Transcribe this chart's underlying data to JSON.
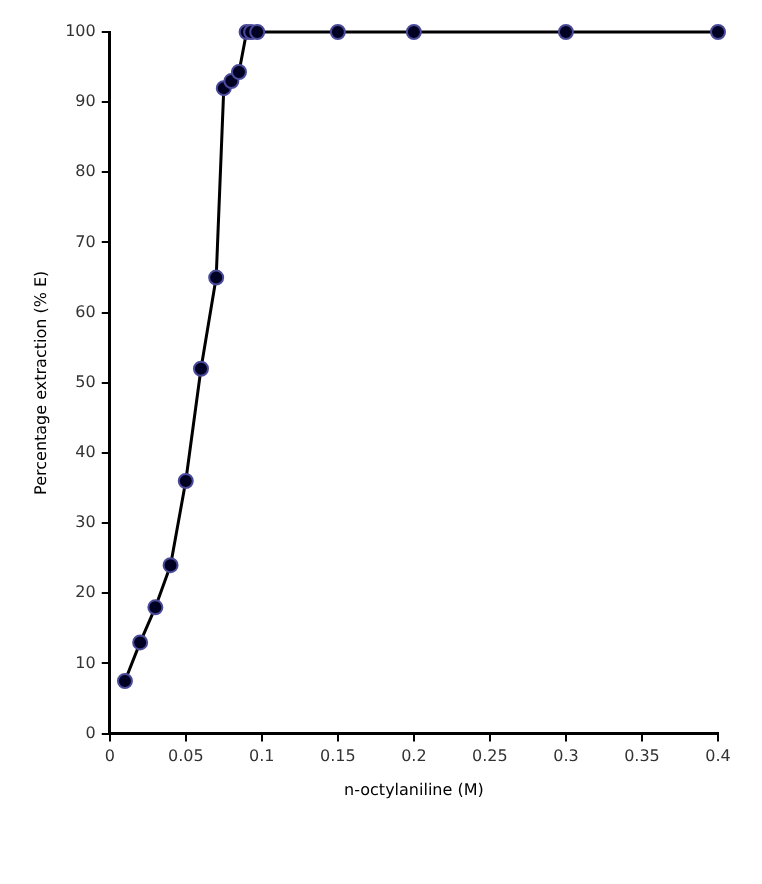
{
  "chart_data": {
    "type": "line",
    "xlabel": "n-octylaniline (M)",
    "ylabel": "Percentage extraction (% E)",
    "x": [
      0.01,
      0.02,
      0.03,
      0.04,
      0.05,
      0.06,
      0.07,
      0.075,
      0.08,
      0.085,
      0.09,
      0.093,
      0.097,
      0.15,
      0.2,
      0.3,
      0.4
    ],
    "series": [
      {
        "color": "#000000",
        "values": [
          7.5,
          13,
          18,
          24,
          36,
          52,
          65,
          92,
          93,
          94.3,
          100,
          100,
          100,
          100,
          100,
          100,
          100
        ]
      }
    ],
    "xlim": [
      0,
      0.4
    ],
    "xticks": [
      0,
      0.05,
      0.1,
      0.15,
      0.2,
      0.25,
      0.3,
      0.35,
      0.4
    ],
    "ylim": [
      0,
      100
    ],
    "yticks": [
      0,
      10,
      20,
      30,
      40,
      50,
      60,
      70,
      80,
      90,
      100
    ],
    "grid": false,
    "legend": false,
    "marker": "circle",
    "line_style": "solid"
  }
}
